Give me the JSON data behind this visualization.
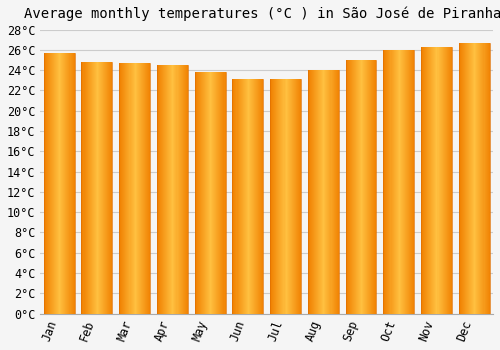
{
  "title": "Average monthly temperatures (°C ) in São José de Piranhas",
  "months": [
    "Jan",
    "Feb",
    "Mar",
    "Apr",
    "May",
    "Jun",
    "Jul",
    "Aug",
    "Sep",
    "Oct",
    "Nov",
    "Dec"
  ],
  "values": [
    25.7,
    24.8,
    24.7,
    24.5,
    23.8,
    23.1,
    23.1,
    24.0,
    25.0,
    26.0,
    26.3,
    26.7
  ],
  "bar_color_center": "#FFB830",
  "bar_color_edge": "#F08000",
  "ylim": [
    0,
    28
  ],
  "ytick_step": 2,
  "background_color": "#f5f5f5",
  "grid_color": "#cccccc",
  "title_fontsize": 10,
  "tick_fontsize": 8.5,
  "font_family": "monospace"
}
